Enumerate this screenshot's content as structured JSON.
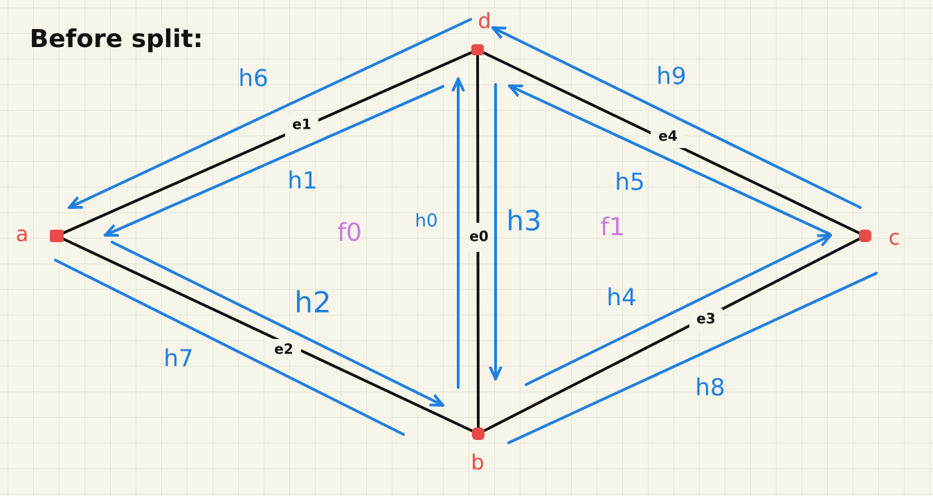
{
  "title": "Before split:",
  "vertices": [
    "a",
    "b",
    "c",
    "d"
  ],
  "edges": [
    "e0",
    "e1",
    "e2",
    "e3",
    "e4"
  ],
  "halfedges": [
    "h0",
    "h1",
    "h2",
    "h3",
    "h4",
    "h5",
    "h6",
    "h7",
    "h8",
    "h9"
  ],
  "faces": [
    "f0",
    "f1"
  ]
}
